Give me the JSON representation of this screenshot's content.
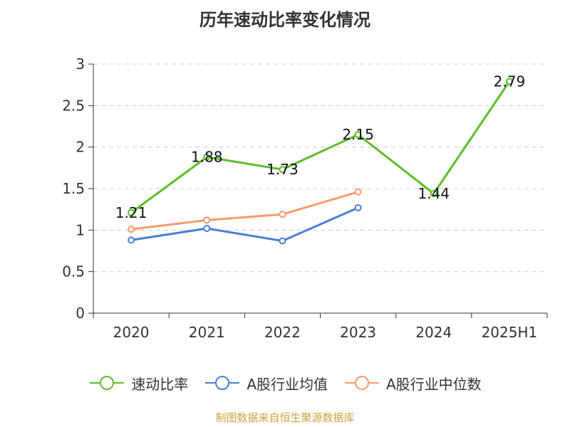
{
  "chart_data": {
    "type": "line",
    "title": "历年速动比率变化情况",
    "categories": [
      "2020",
      "2021",
      "2022",
      "2023",
      "2024",
      "2025H1"
    ],
    "ylim": [
      0,
      3
    ],
    "yticks": [
      "0",
      "0.5",
      "1",
      "1.5",
      "2",
      "2.5",
      "3"
    ],
    "ytick_values": [
      0,
      0.5,
      1,
      1.5,
      2,
      2.5,
      3
    ],
    "grid": true,
    "legend_position": "bottom",
    "series": [
      {
        "name": "速动比率",
        "color": "#5cbd2b",
        "values": [
          1.21,
          1.88,
          1.73,
          2.15,
          1.44,
          2.79
        ],
        "labels": [
          "1.21",
          "1.88",
          "1.73",
          "2.15",
          "1.44",
          "2.79"
        ]
      },
      {
        "name": "A股行业均值",
        "color": "#4a7fd4",
        "values": [
          0.88,
          1.02,
          0.87,
          1.27,
          null,
          null
        ]
      },
      {
        "name": "A股行业中位数",
        "color": "#f79b6a",
        "values": [
          1.01,
          1.12,
          1.19,
          1.46,
          null,
          null
        ]
      }
    ]
  },
  "footer": {
    "source": "制图数据来自恒生聚源数据库"
  }
}
